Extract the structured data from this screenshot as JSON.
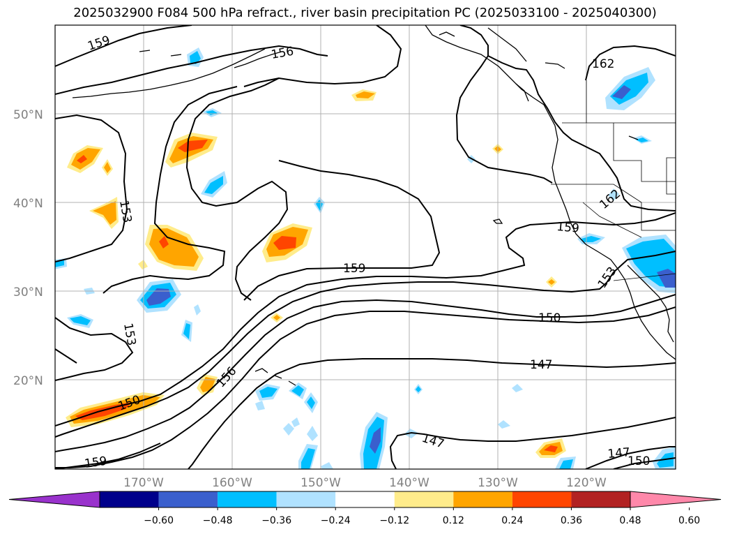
{
  "title": "2025032900 F084 500 hPa refract., river basin precipitation PC (2025033100 - 2025040300)",
  "chart_data": {
    "type": "map",
    "lat_labels": [
      "50°N",
      "40°N",
      "30°N",
      "20°N"
    ],
    "lon_labels": [
      "170°W",
      "160°W",
      "150°W",
      "140°W",
      "130°W",
      "120°W"
    ],
    "contour_labels": [
      "159",
      "156",
      "162",
      "153",
      "159",
      "162",
      "159",
      "153",
      "153",
      "150",
      "147",
      "156",
      "150",
      "159",
      "147",
      "147",
      "150"
    ],
    "colorbar": {
      "ticks": [
        "−0.60",
        "−0.48",
        "−0.36",
        "−0.24",
        "−0.12",
        "0.12",
        "0.24",
        "0.36",
        "0.48",
        "0.60"
      ],
      "colors": [
        "#9932cc",
        "#00008b",
        "#3a5fcd",
        "#00bfff",
        "#b0e2ff",
        "#ffffff",
        "#ffec8b",
        "#ffa500",
        "#ff4500",
        "#b22222",
        "#ff88aa"
      ]
    },
    "colors": {
      "neg_light": "#b0e2ff",
      "neg_mid": "#00bfff",
      "neg_dark": "#3a5fcd",
      "pos_light": "#ffec8b",
      "pos_mid": "#ffa500",
      "pos_dark": "#ff4500",
      "grid": "#b0b0b0",
      "contour": "#000000"
    }
  }
}
